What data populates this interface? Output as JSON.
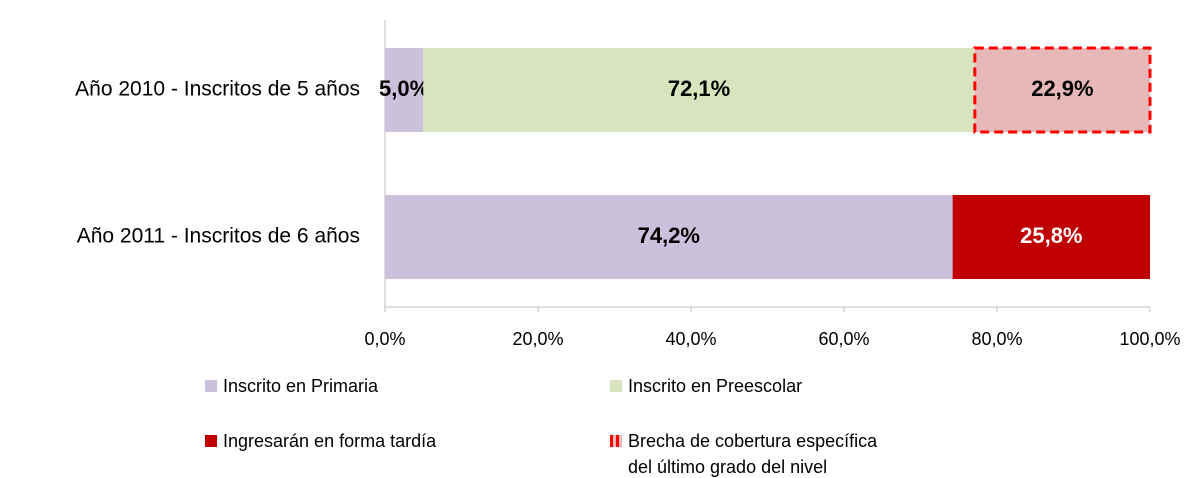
{
  "chart_data": {
    "type": "stacked-bar-horizontal",
    "categories": [
      "Año 2010 - Inscritos de 5 años",
      "Año 2011 - Inscritos de 6 años"
    ],
    "series": [
      {
        "name": "Inscrito en Primaria",
        "color": "#ccc1da",
        "label_color": "#000000",
        "values": [
          5.0,
          74.2
        ],
        "value_labels": [
          "5,0%",
          "74,2%"
        ]
      },
      {
        "name": "Inscrito en Preescolar",
        "color": "#d7e4bd",
        "label_color": "#000000",
        "values": [
          72.1,
          null
        ],
        "value_labels": [
          "72,1%",
          null
        ]
      },
      {
        "name": "Ingresarán en forma tardía",
        "color": "#c00000",
        "label_color": "#ffffff",
        "values": [
          null,
          25.8
        ],
        "value_labels": [
          null,
          "25,8%"
        ]
      },
      {
        "name": "Brecha de cobertura específica del último grado del nivel",
        "color": "#e6b9b8",
        "label_color": "#000000",
        "border_color": "#ff0000",
        "border_style": "dashed",
        "values": [
          22.9,
          null
        ],
        "value_labels": [
          "22,9%",
          null
        ]
      }
    ],
    "xlim": [
      0,
      100
    ],
    "xticks": [
      {
        "value": 0,
        "label": "0,0%"
      },
      {
        "value": 20,
        "label": "20,0%"
      },
      {
        "value": 40,
        "label": "40,0%"
      },
      {
        "value": 60,
        "label": "60,0%"
      },
      {
        "value": 80,
        "label": "80,0%"
      },
      {
        "value": 100,
        "label": "100,0%"
      }
    ],
    "grid": false
  }
}
